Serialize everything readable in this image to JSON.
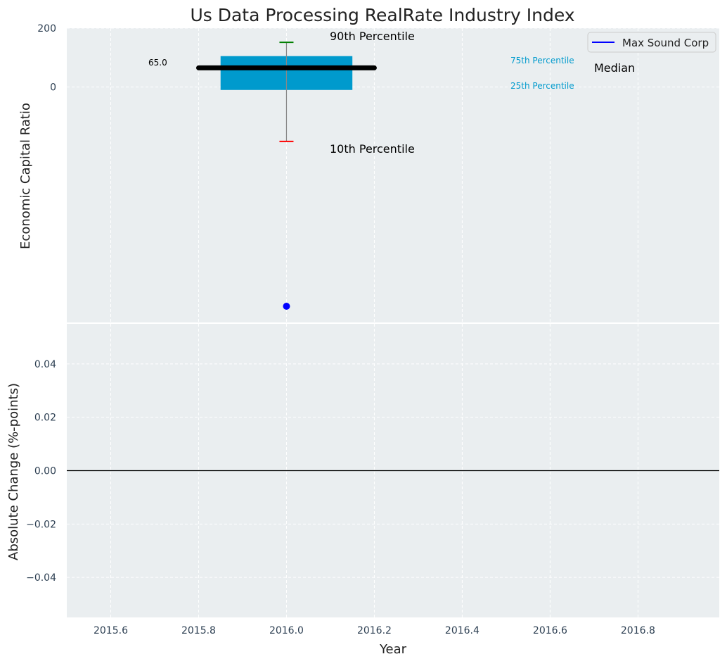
{
  "chart_data": [
    {
      "type": "box",
      "title": "Us Data Processing RealRate Industry Index",
      "xlabel": "",
      "ylabel": "Economic Capital Ratio",
      "xlim": [
        2015.5,
        2016.985
      ],
      "ylim": [
        -800,
        200
      ],
      "yticks": [
        0,
        200
      ],
      "ytick_labels": [
        "0",
        "200"
      ],
      "xticks": [
        2015.6,
        2015.8,
        2016.0,
        2016.2,
        2016.4,
        2016.6,
        2016.8
      ],
      "grid": true,
      "legend": {
        "placement": "top-right",
        "entries": [
          {
            "name": "Max Sound Corp",
            "color": "#0000ff"
          }
        ]
      },
      "box": {
        "x": 2016.0,
        "box_width": 0.3,
        "p10": -185,
        "p25": -10,
        "median": 65,
        "p75": 105,
        "p90": 152,
        "median_label": "65.0",
        "box_color": "#009acd",
        "p90_color": "#008000",
        "p10_color": "#ff0000",
        "median_color": "#000000"
      },
      "series": [
        {
          "name": "Max Sound Corp",
          "color": "#0000ff",
          "points": [
            {
              "x": 2016.0,
              "y": -745
            }
          ]
        }
      ],
      "annotations": {
        "p90": "90th Percentile",
        "p10": "10th Percentile",
        "p75": "75th Percentile",
        "p25": "25th Percentile",
        "median": "Median"
      }
    },
    {
      "type": "line",
      "xlabel": "Year",
      "ylabel": "Absolute Change (%-points)",
      "xlim": [
        2015.5,
        2016.985
      ],
      "ylim": [
        -0.055,
        0.055
      ],
      "yticks": [
        -0.04,
        -0.02,
        0.0,
        0.02,
        0.04
      ],
      "ytick_labels": [
        "−0.04",
        "−0.02",
        "0.00",
        "0.02",
        "0.04"
      ],
      "xticks": [
        2015.6,
        2015.8,
        2016.0,
        2016.2,
        2016.4,
        2016.6,
        2016.8
      ],
      "xtick_labels": [
        "2015.6",
        "2015.8",
        "2016.0",
        "2016.2",
        "2016.4",
        "2016.6",
        "2016.8"
      ],
      "grid": true,
      "reference_line_y": 0,
      "series": []
    }
  ]
}
